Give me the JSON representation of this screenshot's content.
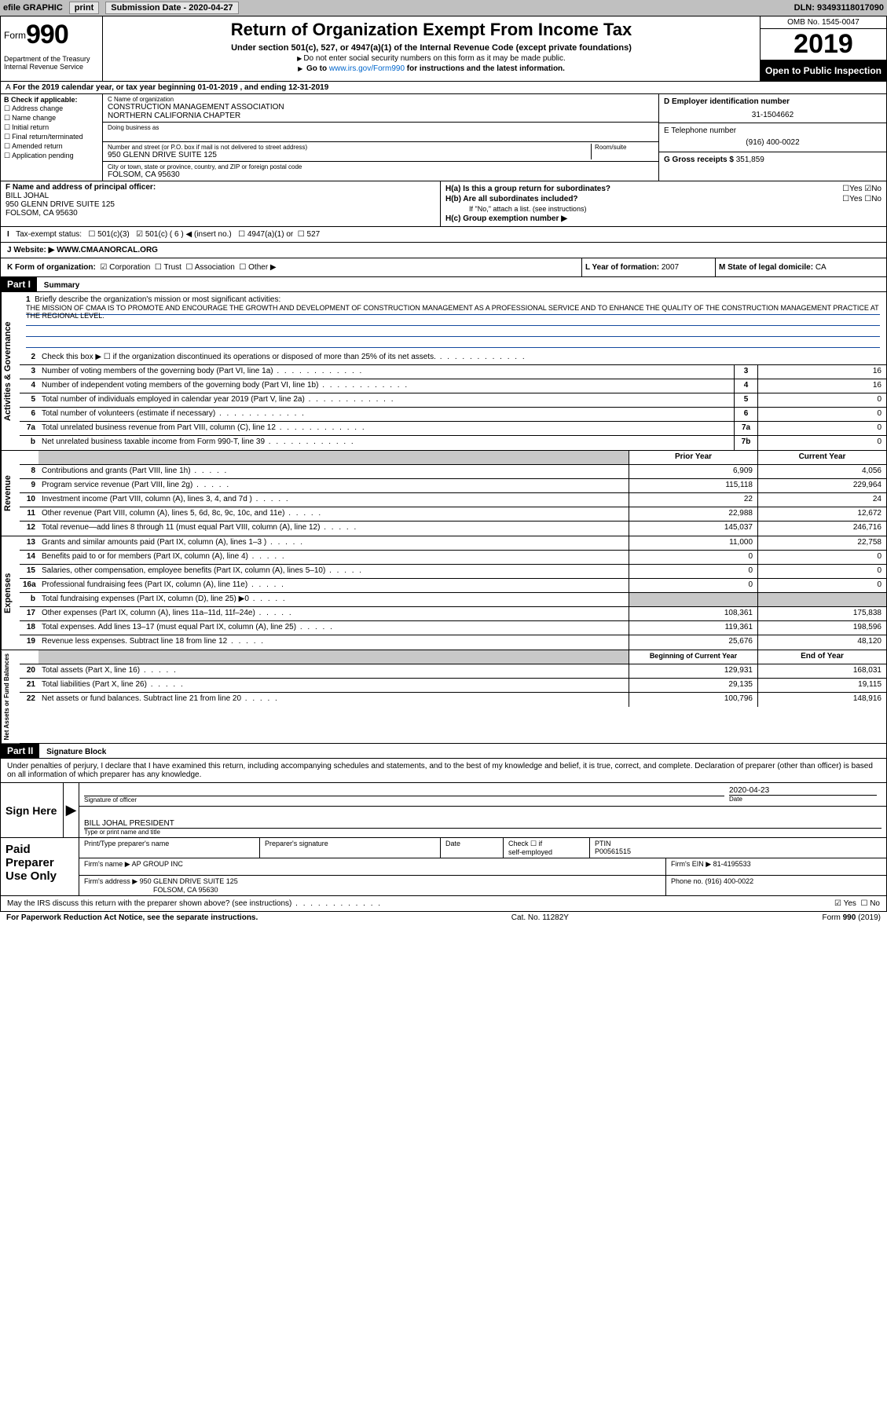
{
  "topbar": {
    "efile": "efile GRAPHIC",
    "print": "print",
    "subdate_label": "Submission Date - ",
    "subdate": "2020-04-27",
    "dln": "DLN: 93493118017090"
  },
  "header": {
    "form": "Form",
    "num": "990",
    "dept1": "Department of the Treasury",
    "dept2": "Internal Revenue Service",
    "title": "Return of Organization Exempt From Income Tax",
    "sub": "Under section 501(c), 527, or 4947(a)(1) of the Internal Revenue Code (except private foundations)",
    "note1": "Do not enter social security numbers on this form as it may be made public.",
    "note2a": "Go to ",
    "note2link": "www.irs.gov/Form990",
    "note2b": " for instructions and the latest information.",
    "omb": "OMB No. 1545-0047",
    "year": "2019",
    "open": "Open to Public Inspection"
  },
  "lineA": "For the 2019 calendar year, or tax year beginning 01-01-2019    , and ending 12-31-2019",
  "sectionB": {
    "label": "B Check if applicable:",
    "opts": [
      "Address change",
      "Name change",
      "Initial return",
      "Final return/terminated",
      "Amended return",
      "Application pending"
    ]
  },
  "sectionC": {
    "name_label": "C Name of organization",
    "name1": "CONSTRUCTION MANAGEMENT ASSOCIATION",
    "name2": "NORTHERN CALIFORNIA CHAPTER",
    "dba_label": "Doing business as",
    "street_label": "Number and street (or P.O. box if mail is not delivered to street address)",
    "room_label": "Room/suite",
    "street": "950 GLENN DRIVE SUITE 125",
    "city_label": "City or town, state or province, country, and ZIP or foreign postal code",
    "city": "FOLSOM, CA  95630"
  },
  "sectionD": {
    "ein_label": "D Employer identification number",
    "ein": "31-1504662",
    "phone_label": "E Telephone number",
    "phone": "(916) 400-0022",
    "gross_label": "G Gross receipts $ ",
    "gross": "351,859"
  },
  "sectionF": {
    "label": "F  Name and address of principal officer:",
    "name": "BILL JOHAL",
    "addr1": "950 GLENN DRIVE SUITE 125",
    "addr2": "FOLSOM, CA  95630"
  },
  "sectionH": {
    "ha": "H(a)  Is this a group return for subordinates?",
    "hb": "H(b)  Are all subordinates included?",
    "hb_note": "If \"No,\" attach a list. (see instructions)",
    "hc": "H(c)  Group exemption number ▶",
    "yes": "Yes",
    "no": "No"
  },
  "taxexempt": {
    "label": "Tax-exempt status:",
    "c3": "501(c)(3)",
    "c": "501(c) ( 6 ) ◀ (insert no.)",
    "a1": "4947(a)(1) or",
    "s527": "527"
  },
  "website": {
    "label": "J   Website: ▶ ",
    "value": "WWW.CMAANORCAL.ORG"
  },
  "korg": {
    "label": "K Form of organization:",
    "corp": "Corporation",
    "trust": "Trust",
    "assoc": "Association",
    "other": "Other ▶",
    "l_label": "L Year of formation: ",
    "l": "2007",
    "m_label": "M State of legal domicile: ",
    "m": "CA"
  },
  "part1": {
    "bar": "Part I",
    "title": "Summary"
  },
  "mission": {
    "num": "1",
    "label": "Briefly describe the organization's mission or most significant activities:",
    "text": "THE MISSION OF CMAA IS TO PROMOTE AND ENCOURAGE THE GROWTH AND DEVELOPMENT OF CONSTRUCTION MANAGEMENT AS A PROFESSIONAL SERVICE AND TO ENHANCE THE QUALITY OF THE CONSTRUCTION MANAGEMENT PRACTICE AT THE REGIONAL LEVEL."
  },
  "gov_lines": [
    {
      "n": "2",
      "t": "Check this box ▶ ☐  if the organization discontinued its operations or disposed of more than 25% of its net assets.",
      "box": "",
      "v": ""
    },
    {
      "n": "3",
      "t": "Number of voting members of the governing body (Part VI, line 1a)",
      "box": "3",
      "v": "16"
    },
    {
      "n": "4",
      "t": "Number of independent voting members of the governing body (Part VI, line 1b)",
      "box": "4",
      "v": "16"
    },
    {
      "n": "5",
      "t": "Total number of individuals employed in calendar year 2019 (Part V, line 2a)",
      "box": "5",
      "v": "0"
    },
    {
      "n": "6",
      "t": "Total number of volunteers (estimate if necessary)",
      "box": "6",
      "v": "0"
    },
    {
      "n": "7a",
      "t": "Total unrelated business revenue from Part VIII, column (C), line 12",
      "box": "7a",
      "v": "0"
    },
    {
      "n": "b",
      "t": "Net unrelated business taxable income from Form 990-T, line 39",
      "box": "7b",
      "v": "0"
    }
  ],
  "twocol_header": {
    "prior": "Prior Year",
    "curr": "Current Year"
  },
  "rev_lines": [
    {
      "n": "8",
      "t": "Contributions and grants (Part VIII, line 1h)",
      "p": "6,909",
      "c": "4,056"
    },
    {
      "n": "9",
      "t": "Program service revenue (Part VIII, line 2g)",
      "p": "115,118",
      "c": "229,964"
    },
    {
      "n": "10",
      "t": "Investment income (Part VIII, column (A), lines 3, 4, and 7d )",
      "p": "22",
      "c": "24"
    },
    {
      "n": "11",
      "t": "Other revenue (Part VIII, column (A), lines 5, 6d, 8c, 9c, 10c, and 11e)",
      "p": "22,988",
      "c": "12,672"
    },
    {
      "n": "12",
      "t": "Total revenue—add lines 8 through 11 (must equal Part VIII, column (A), line 12)",
      "p": "145,037",
      "c": "246,716"
    }
  ],
  "exp_lines": [
    {
      "n": "13",
      "t": "Grants and similar amounts paid (Part IX, column (A), lines 1–3 )",
      "p": "11,000",
      "c": "22,758"
    },
    {
      "n": "14",
      "t": "Benefits paid to or for members (Part IX, column (A), line 4)",
      "p": "0",
      "c": "0"
    },
    {
      "n": "15",
      "t": "Salaries, other compensation, employee benefits (Part IX, column (A), lines 5–10)",
      "p": "0",
      "c": "0"
    },
    {
      "n": "16a",
      "t": "Professional fundraising fees (Part IX, column (A), line 11e)",
      "p": "0",
      "c": "0"
    },
    {
      "n": "b",
      "t": "Total fundraising expenses (Part IX, column (D), line 25) ▶0",
      "p": "",
      "c": "",
      "shade": true
    },
    {
      "n": "17",
      "t": "Other expenses (Part IX, column (A), lines 11a–11d, 11f–24e)",
      "p": "108,361",
      "c": "175,838"
    },
    {
      "n": "18",
      "t": "Total expenses. Add lines 13–17 (must equal Part IX, column (A), line 25)",
      "p": "119,361",
      "c": "198,596"
    },
    {
      "n": "19",
      "t": "Revenue less expenses. Subtract line 18 from line 12",
      "p": "25,676",
      "c": "48,120"
    }
  ],
  "net_header": {
    "beg": "Beginning of Current Year",
    "end": "End of Year"
  },
  "net_lines": [
    {
      "n": "20",
      "t": "Total assets (Part X, line 16)",
      "p": "129,931",
      "c": "168,031"
    },
    {
      "n": "21",
      "t": "Total liabilities (Part X, line 26)",
      "p": "29,135",
      "c": "19,115"
    },
    {
      "n": "22",
      "t": "Net assets or fund balances. Subtract line 21 from line 20",
      "p": "100,796",
      "c": "148,916"
    }
  ],
  "side_labels": {
    "gov": "Activities & Governance",
    "rev": "Revenue",
    "exp": "Expenses",
    "net": "Net Assets or Fund Balances"
  },
  "part2": {
    "bar": "Part II",
    "title": "Signature Block"
  },
  "sig": {
    "penalty": "Under penalties of perjury, I declare that I have examined this return, including accompanying schedules and statements, and to the best of my knowledge and belief, it is true, correct, and complete. Declaration of preparer (other than officer) is based on all information of which preparer has any knowledge.",
    "signhere": "Sign Here",
    "sig_officer": "Signature of officer",
    "date_label": "Date",
    "date": "2020-04-23",
    "typed": "BILL JOHAL PRESIDENT",
    "typed_label": "Type or print name and title"
  },
  "paid": {
    "label": "Paid Preparer Use Only",
    "h1": "Print/Type preparer's name",
    "h2": "Preparer's signature",
    "h3": "Date",
    "h4a": "Check ☐ if",
    "h4b": "self-employed",
    "h5": "PTIN",
    "ptin": "P00561515",
    "firm_label": "Firm's name    ▶ ",
    "firm": "AP GROUP INC",
    "ein_label": "Firm's EIN ▶ ",
    "ein": "81-4195533",
    "addr_label": "Firm's address ▶ ",
    "addr1": "950 GLENN DRIVE SUITE 125",
    "addr2": "FOLSOM, CA  95630",
    "phone_label": "Phone no. ",
    "phone": "(916) 400-0022"
  },
  "discuss": {
    "text": "May the IRS discuss this return with the preparer shown above? (see instructions)",
    "yes": "Yes",
    "no": "No"
  },
  "footer": {
    "left": "For Paperwork Reduction Act Notice, see the separate instructions.",
    "mid": "Cat. No. 11282Y",
    "right": "Form 990 (2019)",
    "rightb": "990"
  }
}
